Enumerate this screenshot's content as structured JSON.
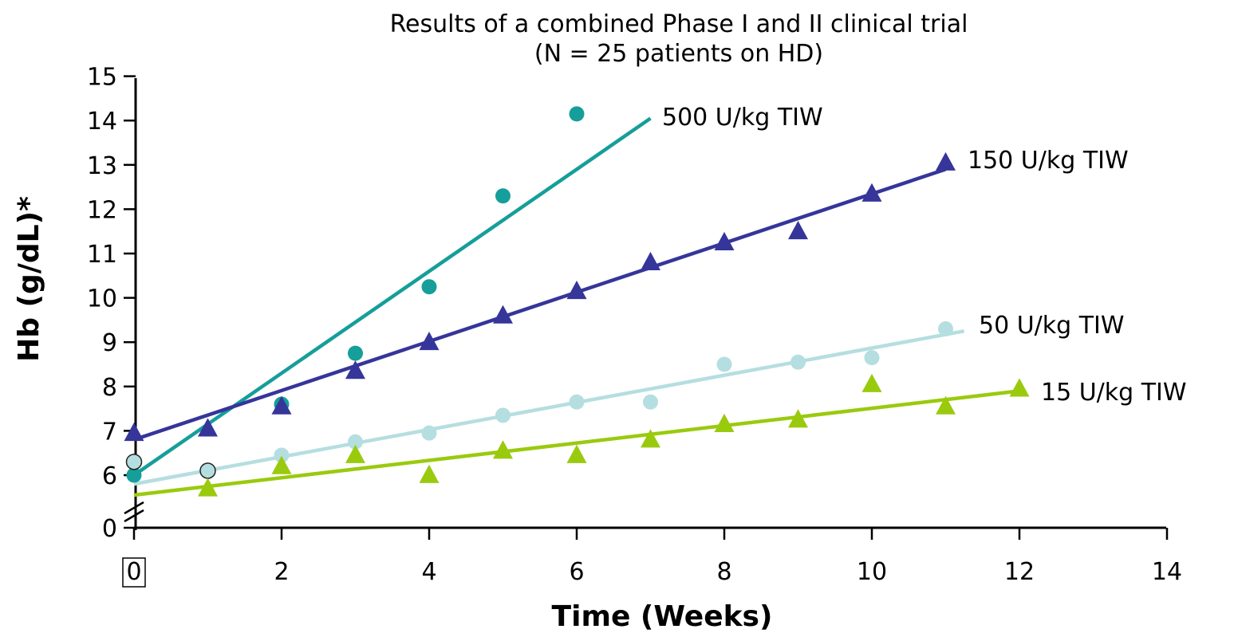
{
  "chart_data": {
    "type": "scatter",
    "title": "Results of a combined Phase I and II clinical trial",
    "subtitle": "(N = 25 patients on HD)",
    "xlabel": "Time (Weeks)",
    "ylabel": "Hb (g/dL)*",
    "xlim": [
      0,
      14
    ],
    "x_ticks": [
      "0",
      "2",
      "4",
      "6",
      "8",
      "10",
      "12",
      "14"
    ],
    "y_ticks": [
      "0",
      "6",
      "7",
      "8",
      "9",
      "10",
      "11",
      "12",
      "13",
      "14",
      "15"
    ],
    "y_axis_break": "between 0 and 6",
    "ylim": [
      5,
      15
    ],
    "grid": false,
    "series": [
      {
        "name": "500 U/kg TIW",
        "marker": "circle",
        "color": "#159E9A",
        "points": [
          [
            0,
            6.0
          ],
          [
            2,
            7.6
          ],
          [
            3,
            8.75
          ],
          [
            4,
            10.25
          ],
          [
            5,
            12.3
          ],
          [
            6,
            14.15
          ]
        ],
        "trend": [
          [
            0,
            6.0
          ],
          [
            7,
            14.05
          ]
        ]
      },
      {
        "name": "150 U/kg TIW",
        "marker": "triangle",
        "color": "#35359A",
        "points": [
          [
            0,
            6.95
          ],
          [
            1,
            7.05
          ],
          [
            2,
            7.55
          ],
          [
            3,
            8.35
          ],
          [
            4,
            9.0
          ],
          [
            5,
            9.6
          ],
          [
            6,
            10.15
          ],
          [
            7,
            10.8
          ],
          [
            8,
            11.25
          ],
          [
            9,
            11.5
          ],
          [
            10,
            12.35
          ],
          [
            11,
            13.05
          ]
        ],
        "trend": [
          [
            0,
            6.8
          ],
          [
            11,
            12.9
          ]
        ]
      },
      {
        "name": "50 U/kg TIW",
        "marker": "circle",
        "color": "#B5DEE0",
        "points": [
          [
            0,
            6.3
          ],
          [
            1,
            6.1
          ],
          [
            2,
            6.45
          ],
          [
            3,
            6.75
          ],
          [
            4,
            6.95
          ],
          [
            5,
            7.35
          ],
          [
            6,
            7.65
          ],
          [
            7,
            7.65
          ],
          [
            8,
            8.5
          ],
          [
            9,
            8.55
          ],
          [
            10,
            8.65
          ],
          [
            11,
            9.3
          ]
        ],
        "trend": [
          [
            0,
            5.8
          ],
          [
            11.25,
            9.25
          ]
        ]
      },
      {
        "name": "15 U/kg TIW",
        "marker": "triangle",
        "color": "#9ACA0E",
        "points": [
          [
            1,
            5.7
          ],
          [
            2,
            6.2
          ],
          [
            3,
            6.45
          ],
          [
            4,
            6.0
          ],
          [
            5,
            6.55
          ],
          [
            6,
            6.45
          ],
          [
            7,
            6.8
          ],
          [
            8,
            7.15
          ],
          [
            9,
            7.25
          ],
          [
            10,
            8.05
          ],
          [
            11,
            7.55
          ],
          [
            12,
            7.95
          ]
        ],
        "trend": [
          [
            0,
            5.55
          ],
          [
            12,
            7.9
          ]
        ]
      }
    ]
  }
}
